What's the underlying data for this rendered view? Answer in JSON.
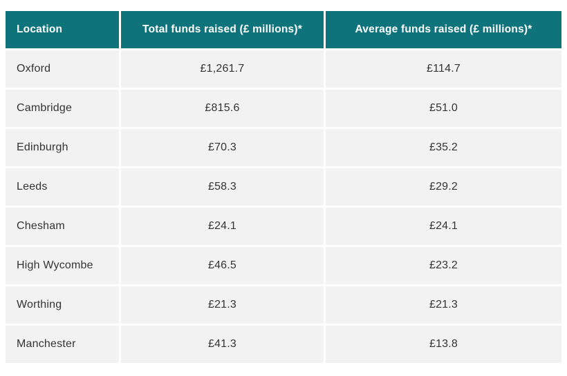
{
  "table": {
    "columns": [
      "Location",
      "Total funds raised (£ millions)*",
      "Average funds raised (£ millions)*"
    ],
    "rows": [
      {
        "location": "Oxford",
        "total": "£1,261.7",
        "average": "£114.7"
      },
      {
        "location": "Cambridge",
        "total": "£815.6",
        "average": "£51.0"
      },
      {
        "location": "Edinburgh",
        "total": "£70.3",
        "average": "£35.2"
      },
      {
        "location": "Leeds",
        "total": "£58.3",
        "average": "£29.2"
      },
      {
        "location": "Chesham",
        "total": "£24.1",
        "average": "£24.1"
      },
      {
        "location": "High Wycombe",
        "total": "£46.5",
        "average": "£23.2"
      },
      {
        "location": "Worthing",
        "total": "£21.3",
        "average": "£21.3"
      },
      {
        "location": "Manchester",
        "total": "£41.3",
        "average": "£13.8"
      }
    ]
  },
  "colors": {
    "header_bg": "#0f737b",
    "header_text": "#ffffff",
    "row_bg": "#f2f2f2",
    "body_text": "#333333",
    "page_bg": "#ffffff"
  },
  "chart_data": {
    "type": "table",
    "title": "",
    "columns": [
      "Location",
      "Total funds raised (£ millions)*",
      "Average funds raised (£ millions)*"
    ],
    "rows": [
      [
        "Oxford",
        1261.7,
        114.7
      ],
      [
        "Cambridge",
        815.6,
        51.0
      ],
      [
        "Edinburgh",
        70.3,
        35.2
      ],
      [
        "Leeds",
        58.3,
        29.2
      ],
      [
        "Chesham",
        24.1,
        24.1
      ],
      [
        "High Wycombe",
        46.5,
        23.2
      ],
      [
        "Worthing",
        21.3,
        21.3
      ],
      [
        "Manchester",
        41.3,
        13.8
      ]
    ]
  }
}
